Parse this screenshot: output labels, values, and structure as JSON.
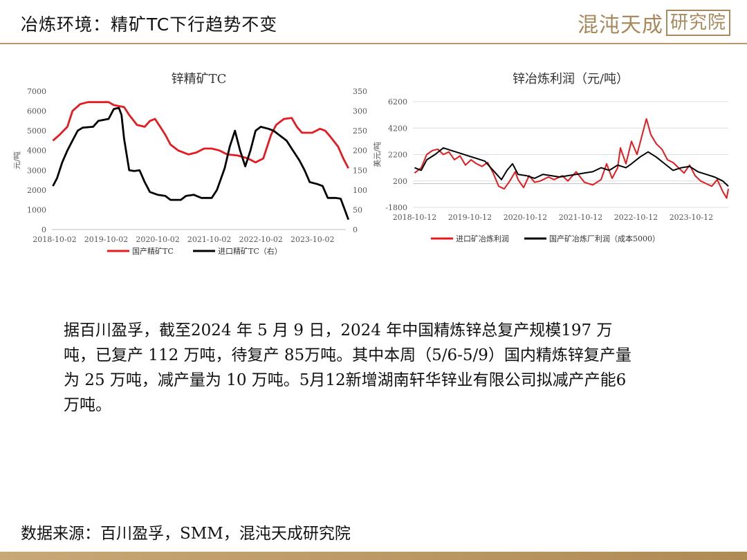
{
  "header": {
    "title": "冶炼环境：精矿TC下行趋势不变",
    "logo_text": "混沌天成",
    "logo_boxed": "研究院"
  },
  "colors": {
    "accent_gold": "#b8976a",
    "series_red": "#e8191e",
    "series_black": "#000000"
  },
  "chart_data": [
    {
      "type": "line",
      "title": "锌精矿TC",
      "ylabel": "元/吨",
      "ylim": [
        0,
        7000
      ],
      "yticks": [
        "7000",
        "6000",
        "5000",
        "4000",
        "3000",
        "2000",
        "1000",
        "0"
      ],
      "y2lim": [
        0,
        350
      ],
      "y2ticks": [
        "350",
        "300",
        "250",
        "200",
        "150",
        "100",
        "50",
        "0"
      ],
      "xticks": [
        "2018-10-02",
        "2019-10-02",
        "2020-10-02",
        "2021-10-02",
        "2022-10-02",
        "2023-10-02"
      ],
      "xrange": [
        2018.7,
        2024.4
      ],
      "legend_position": "bottom",
      "series": [
        {
          "name": "国产精矿TC",
          "axis": "left",
          "color": "#e8191e",
          "points": [
            [
              2018.72,
              4500
            ],
            [
              2018.85,
              4800
            ],
            [
              2019.0,
              5200
            ],
            [
              2019.1,
              6000
            ],
            [
              2019.25,
              6350
            ],
            [
              2019.4,
              6450
            ],
            [
              2019.6,
              6450
            ],
            [
              2019.8,
              6450
            ],
            [
              2019.9,
              6300
            ],
            [
              2020.1,
              6200
            ],
            [
              2020.2,
              5800
            ],
            [
              2020.35,
              5300
            ],
            [
              2020.5,
              5200
            ],
            [
              2020.6,
              5500
            ],
            [
              2020.7,
              5600
            ],
            [
              2020.8,
              5200
            ],
            [
              2020.9,
              4800
            ],
            [
              2021.0,
              4300
            ],
            [
              2021.15,
              4000
            ],
            [
              2021.35,
              3800
            ],
            [
              2021.5,
              3900
            ],
            [
              2021.65,
              4100
            ],
            [
              2021.8,
              4100
            ],
            [
              2021.95,
              4000
            ],
            [
              2022.1,
              3800
            ],
            [
              2022.3,
              3750
            ],
            [
              2022.5,
              3600
            ],
            [
              2022.65,
              3400
            ],
            [
              2022.8,
              3600
            ],
            [
              2022.95,
              4800
            ],
            [
              2023.05,
              5300
            ],
            [
              2023.2,
              5600
            ],
            [
              2023.35,
              5650
            ],
            [
              2023.45,
              5200
            ],
            [
              2023.55,
              4900
            ],
            [
              2023.75,
              4900
            ],
            [
              2023.9,
              5100
            ],
            [
              2024.0,
              5000
            ],
            [
              2024.1,
              4700
            ],
            [
              2024.25,
              4200
            ],
            [
              2024.35,
              3600
            ],
            [
              2024.45,
              3100
            ]
          ]
        },
        {
          "name": "进口精矿TC（右）",
          "axis": "right",
          "color": "#000000",
          "points": [
            [
              2018.72,
              110
            ],
            [
              2018.8,
              130
            ],
            [
              2018.9,
              170
            ],
            [
              2019.0,
              200
            ],
            [
              2019.1,
              225
            ],
            [
              2019.2,
              250
            ],
            [
              2019.3,
              258
            ],
            [
              2019.5,
              260
            ],
            [
              2019.6,
              275
            ],
            [
              2019.8,
              280
            ],
            [
              2019.9,
              305
            ],
            [
              2020.0,
              308
            ],
            [
              2020.05,
              290
            ],
            [
              2020.1,
              230
            ],
            [
              2020.2,
              150
            ],
            [
              2020.3,
              148
            ],
            [
              2020.4,
              150
            ],
            [
              2020.5,
              120
            ],
            [
              2020.6,
              95
            ],
            [
              2020.75,
              88
            ],
            [
              2020.9,
              85
            ],
            [
              2021.0,
              75
            ],
            [
              2021.2,
              75
            ],
            [
              2021.3,
              85
            ],
            [
              2021.45,
              88
            ],
            [
              2021.6,
              80
            ],
            [
              2021.8,
              80
            ],
            [
              2021.9,
              100
            ],
            [
              2022.05,
              155
            ],
            [
              2022.15,
              210
            ],
            [
              2022.25,
              250
            ],
            [
              2022.35,
              200
            ],
            [
              2022.45,
              160
            ],
            [
              2022.55,
              200
            ],
            [
              2022.65,
              250
            ],
            [
              2022.75,
              260
            ],
            [
              2022.9,
              255
            ],
            [
              2023.0,
              250
            ],
            [
              2023.1,
              240
            ],
            [
              2023.25,
              225
            ],
            [
              2023.35,
              205
            ],
            [
              2023.5,
              175
            ],
            [
              2023.6,
              150
            ],
            [
              2023.7,
              120
            ],
            [
              2023.85,
              115
            ],
            [
              2023.95,
              110
            ],
            [
              2024.05,
              80
            ],
            [
              2024.2,
              80
            ],
            [
              2024.3,
              78
            ],
            [
              2024.38,
              50
            ],
            [
              2024.45,
              25
            ]
          ]
        }
      ]
    },
    {
      "type": "line",
      "title": "锌冶炼利润（元/吨）",
      "ylabel": "美元/吨",
      "ylim": [
        -1800,
        6200
      ],
      "yticks": [
        "6200",
        "4200",
        "2200",
        "200",
        "-1800"
      ],
      "xticks": [
        "2018-10-12",
        "2019-10-12",
        "2020-10-12",
        "2021-10-12",
        "2022-10-12",
        "2023-10-12"
      ],
      "xrange": [
        2018.75,
        2024.45
      ],
      "legend_position": "bottom",
      "series": [
        {
          "name": "进口矿冶炼利润",
          "color": "#e8191e",
          "points": [
            [
              2018.78,
              800
            ],
            [
              2018.9,
              1200
            ],
            [
              2019.0,
              2200
            ],
            [
              2019.1,
              2500
            ],
            [
              2019.2,
              2600
            ],
            [
              2019.3,
              2200
            ],
            [
              2019.4,
              2400
            ],
            [
              2019.5,
              1800
            ],
            [
              2019.6,
              2100
            ],
            [
              2019.7,
              1400
            ],
            [
              2019.8,
              1800
            ],
            [
              2019.9,
              1500
            ],
            [
              2020.0,
              1300
            ],
            [
              2020.1,
              1600
            ],
            [
              2020.2,
              800
            ],
            [
              2020.3,
              -200
            ],
            [
              2020.4,
              -400
            ],
            [
              2020.5,
              200
            ],
            [
              2020.6,
              900
            ],
            [
              2020.65,
              300
            ],
            [
              2020.75,
              -300
            ],
            [
              2020.85,
              600
            ],
            [
              2020.95,
              100
            ],
            [
              2021.05,
              200
            ],
            [
              2021.2,
              500
            ],
            [
              2021.3,
              300
            ],
            [
              2021.45,
              600
            ],
            [
              2021.55,
              200
            ],
            [
              2021.7,
              900
            ],
            [
              2021.85,
              100
            ],
            [
              2022.0,
              -100
            ],
            [
              2022.15,
              300
            ],
            [
              2022.25,
              1500
            ],
            [
              2022.35,
              400
            ],
            [
              2022.45,
              1200
            ],
            [
              2022.5,
              2700
            ],
            [
              2022.6,
              1500
            ],
            [
              2022.7,
              3200
            ],
            [
              2022.8,
              2200
            ],
            [
              2022.9,
              3800
            ],
            [
              2022.97,
              4900
            ],
            [
              2023.05,
              3700
            ],
            [
              2023.15,
              3000
            ],
            [
              2023.25,
              2600
            ],
            [
              2023.35,
              1800
            ],
            [
              2023.45,
              1600
            ],
            [
              2023.55,
              1200
            ],
            [
              2023.65,
              800
            ],
            [
              2023.75,
              1400
            ],
            [
              2023.85,
              600
            ],
            [
              2023.95,
              200
            ],
            [
              2024.05,
              0
            ],
            [
              2024.15,
              -200
            ],
            [
              2024.25,
              300
            ],
            [
              2024.35,
              -600
            ],
            [
              2024.42,
              -1100
            ],
            [
              2024.45,
              -400
            ]
          ]
        },
        {
          "name": "国产矿冶炼厂利润（成本5000）",
          "color": "#000000",
          "points": [
            [
              2018.78,
              1200
            ],
            [
              2018.9,
              1000
            ],
            [
              2019.0,
              1800
            ],
            [
              2019.15,
              2200
            ],
            [
              2019.3,
              2700
            ],
            [
              2019.45,
              2500
            ],
            [
              2019.6,
              2300
            ],
            [
              2019.75,
              2100
            ],
            [
              2019.9,
              1900
            ],
            [
              2020.05,
              1700
            ],
            [
              2020.2,
              1000
            ],
            [
              2020.35,
              300
            ],
            [
              2020.45,
              1000
            ],
            [
              2020.55,
              1500
            ],
            [
              2020.65,
              700
            ],
            [
              2020.8,
              600
            ],
            [
              2020.95,
              400
            ],
            [
              2021.1,
              700
            ],
            [
              2021.25,
              600
            ],
            [
              2021.4,
              500
            ],
            [
              2021.55,
              600
            ],
            [
              2021.7,
              700
            ],
            [
              2021.85,
              800
            ],
            [
              2022.0,
              900
            ],
            [
              2022.15,
              1200
            ],
            [
              2022.3,
              1000
            ],
            [
              2022.45,
              1400
            ],
            [
              2022.6,
              1200
            ],
            [
              2022.7,
              1500
            ],
            [
              2022.85,
              2000
            ],
            [
              2023.0,
              2400
            ],
            [
              2023.15,
              2000
            ],
            [
              2023.3,
              1500
            ],
            [
              2023.45,
              1000
            ],
            [
              2023.6,
              1200
            ],
            [
              2023.75,
              1300
            ],
            [
              2023.9,
              900
            ],
            [
              2024.05,
              700
            ],
            [
              2024.2,
              500
            ],
            [
              2024.35,
              200
            ],
            [
              2024.45,
              -200
            ]
          ]
        }
      ]
    }
  ],
  "body": {
    "paragraph": "据百川盈孚，截至2024 年 5 月 9 日，2024 年中国精炼锌总复产规模197 万吨，已复产 112 万吨，待复产 85万吨。其中本周（5/6-5/9）国内精炼锌复产量为 25 万吨，减产量为 10 万吨。5月12新增湖南轩华锌业有限公司拟减产产能6万吨。"
  },
  "footer": {
    "source": "数据来源：百川盈孚，SMM，混沌天成研究院"
  }
}
